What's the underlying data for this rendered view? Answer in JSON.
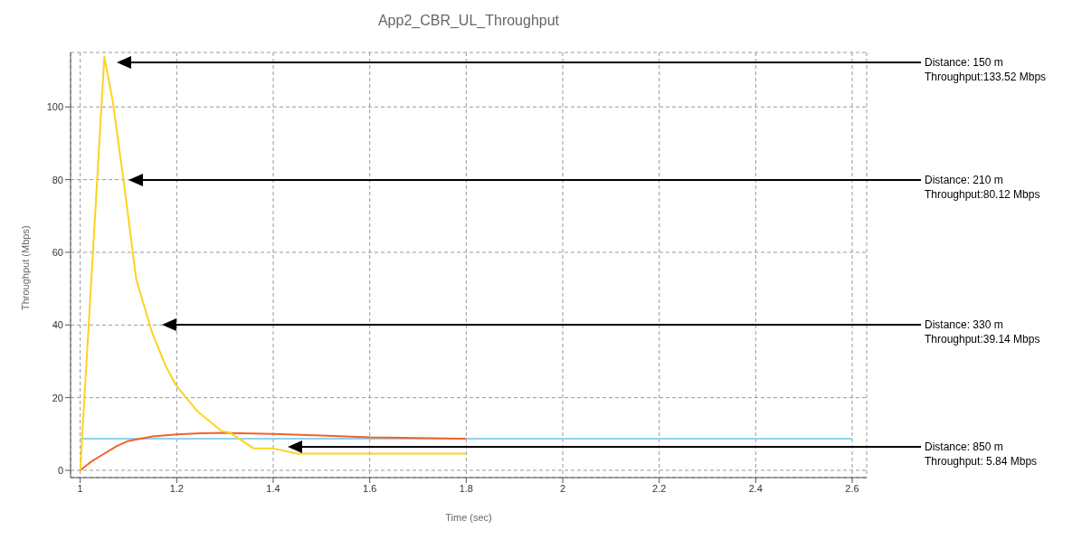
{
  "chart_data": {
    "type": "line",
    "title": "App2_CBR_UL_Throughput",
    "xlabel": "Time (sec)",
    "ylabel": "Throughput (Mbps)",
    "xlim": [
      0.98,
      2.63
    ],
    "ylim": [
      -2,
      115
    ],
    "xticks": [
      1,
      1.2,
      1.4,
      1.6,
      1.8,
      2,
      2.2,
      2.4,
      2.6
    ],
    "yticks": [
      0,
      20,
      40,
      60,
      80,
      100
    ],
    "grid": true,
    "legend": false,
    "marker": "none",
    "line_style": "solid",
    "series": [
      {
        "color": "#8fd3f0",
        "x": [
          1,
          2.6
        ],
        "values": [
          8.7,
          8.7
        ]
      },
      {
        "color": "#f4612a",
        "x": [
          1,
          1.025,
          1.05,
          1.075,
          1.1,
          1.15,
          1.2,
          1.25,
          1.3,
          1.4,
          1.5,
          1.6,
          1.7,
          1.8
        ],
        "values": [
          0,
          2.6,
          4.6,
          6.6,
          8.1,
          9.3,
          9.9,
          10.2,
          10.3,
          10,
          9.6,
          9.1,
          8.9,
          8.7
        ]
      },
      {
        "color": "#ffd21f",
        "x": [
          1,
          1.05,
          1.067,
          1.09,
          1.116,
          1.149,
          1.177,
          1.198,
          1.244,
          1.293,
          1.311,
          1.36,
          1.4,
          1.45,
          1.8
        ],
        "values": [
          0,
          113.8,
          101.9,
          79.7,
          52.6,
          37.9,
          28.8,
          23.5,
          16.1,
          10.8,
          10.3,
          6,
          6,
          4.6,
          4.6
        ]
      }
    ],
    "annotations": [
      "Distance: 150 m\nThroughput:133.52 Mbps",
      "Distance: 210 m\nThroughput:80.12 Mbps",
      "Distance: 330 m\nThroughput:39.14 Mbps",
      "Distance: 850 m\nThroughput: 5.84 Mbps"
    ]
  }
}
